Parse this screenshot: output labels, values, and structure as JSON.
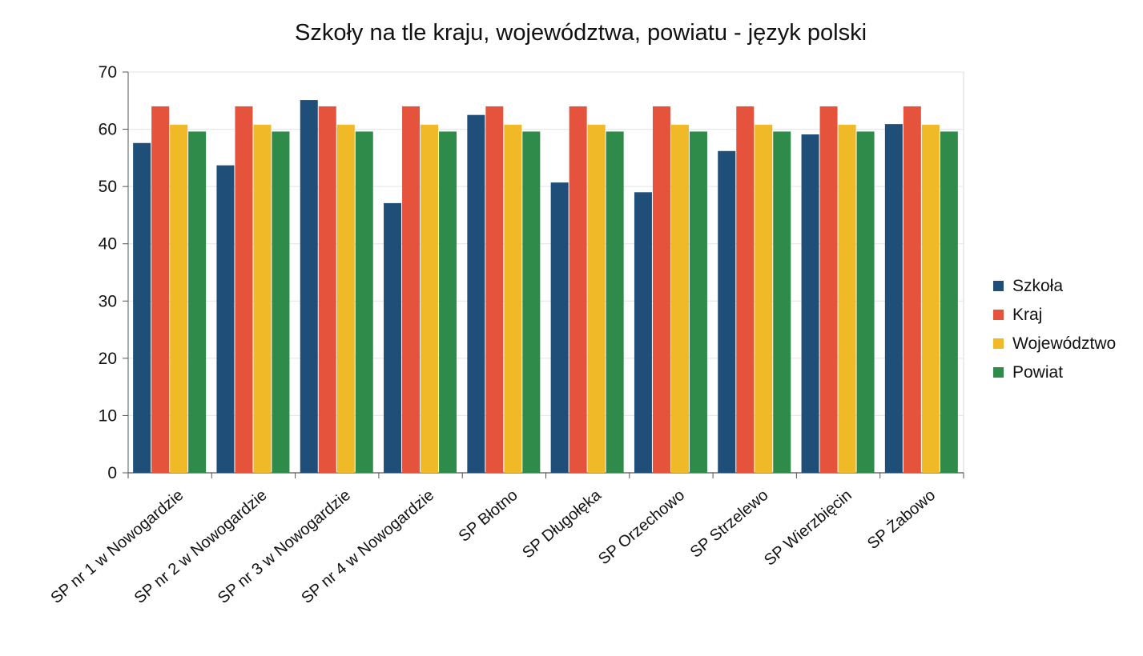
{
  "chart_data": {
    "type": "bar",
    "title": "Szkoły na tle kraju, województwa, powiatu - język polski",
    "xlabel": "",
    "ylabel": "",
    "ylim": [
      0,
      70
    ],
    "yticks": [
      0,
      10,
      20,
      30,
      40,
      50,
      60,
      70
    ],
    "grid": true,
    "legend_position": "right",
    "categories": [
      "SP nr 1 w Nowogardzie",
      "SP nr 2 w Nowogardzie",
      "SP nr 3 w Nowogardzie",
      "SP nr 4 w Nowogardzie",
      "SP Błotno",
      "SP  Długołęka",
      "SP Orzechowo",
      "SP Strzelewo",
      "SP Wierzbięcin",
      "SP Żabowo"
    ],
    "series": [
      {
        "name": "Szkoła",
        "color": "#1f4e79",
        "values": [
          57.6,
          53.7,
          65.1,
          47.1,
          62.5,
          50.7,
          49.0,
          56.2,
          59.1,
          60.9
        ]
      },
      {
        "name": "Kraj",
        "color": "#e5533c",
        "values": [
          64.0,
          64.0,
          64.0,
          64.0,
          64.0,
          64.0,
          64.0,
          64.0,
          64.0,
          64.0
        ]
      },
      {
        "name": "Województwo",
        "color": "#f0b928",
        "values": [
          60.8,
          60.8,
          60.8,
          60.8,
          60.8,
          60.8,
          60.8,
          60.8,
          60.8,
          60.8
        ]
      },
      {
        "name": "Powiat",
        "color": "#2e8b4a",
        "values": [
          59.6,
          59.6,
          59.6,
          59.6,
          59.6,
          59.6,
          59.6,
          59.6,
          59.6,
          59.6
        ]
      }
    ]
  }
}
